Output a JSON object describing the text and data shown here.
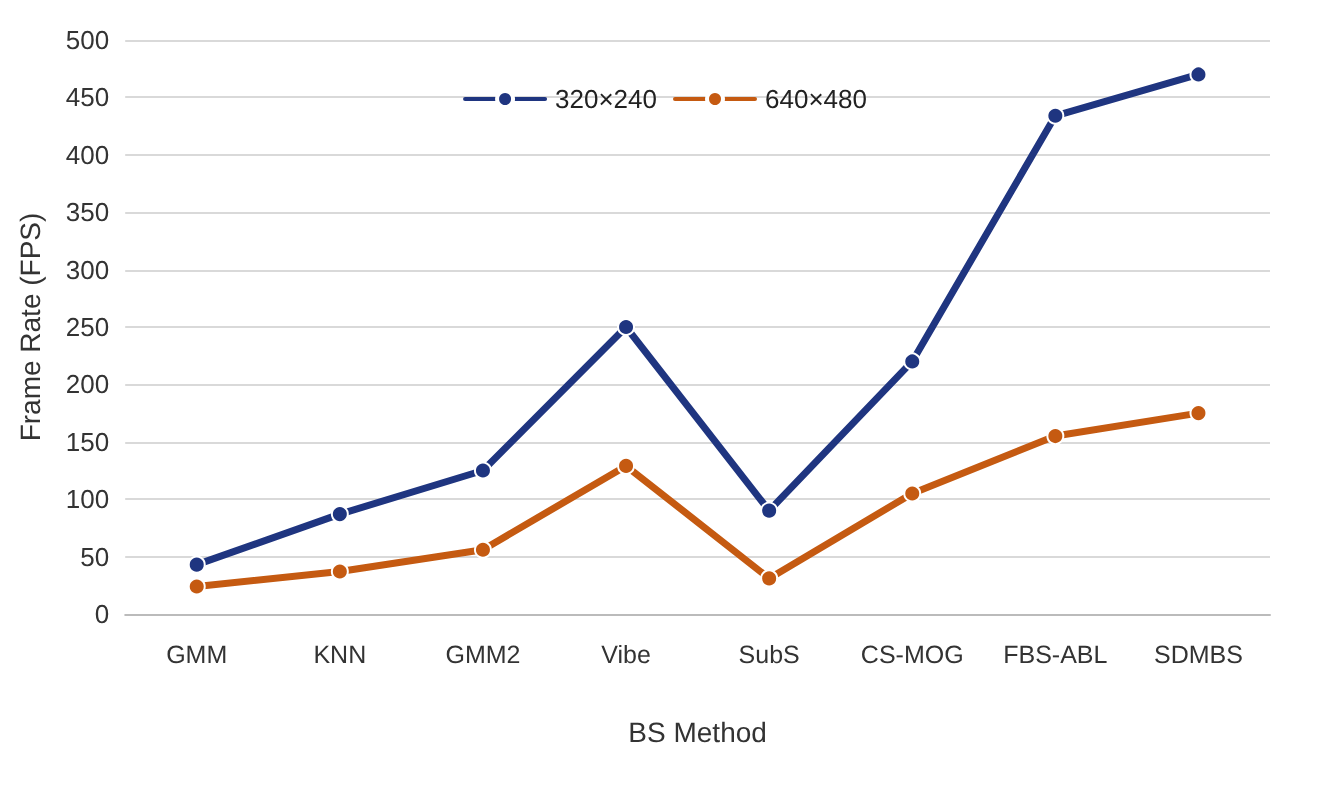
{
  "chart_data": {
    "type": "line",
    "xlabel": "BS Method",
    "ylabel": "Frame Rate (FPS)",
    "categories": [
      "GMM",
      "KNN",
      "GMM2",
      "Vibe",
      "SubS",
      "CS-MOG",
      "FBS-ABL",
      "SDMBS"
    ],
    "series": [
      {
        "name": "320×240",
        "color": "#1f3580",
        "values": [
          43,
          87,
          125,
          250,
          90,
          220,
          434,
          470
        ]
      },
      {
        "name": "640×480",
        "color": "#c55a11",
        "values": [
          24,
          37,
          56,
          129,
          31,
          105,
          155,
          175
        ]
      }
    ],
    "ylim": [
      0,
      500
    ],
    "yticks": [
      0,
      50,
      100,
      150,
      200,
      250,
      300,
      350,
      400,
      450,
      500
    ],
    "grid": "y",
    "legend": "top",
    "marker": "circle",
    "line_style": "solid"
  }
}
